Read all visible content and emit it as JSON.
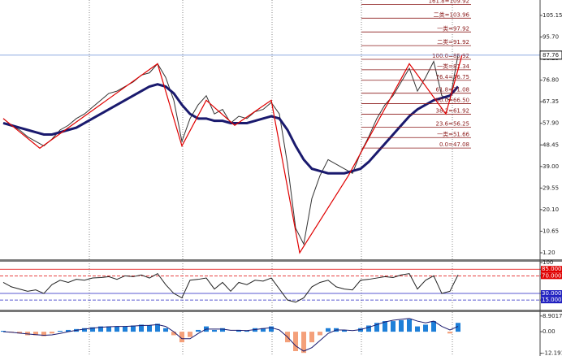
{
  "chart_data": [
    {
      "type": "line",
      "ylim": [
        -1.29,
        111.91
      ],
      "yticks": [
        {
          "value": 105.15,
          "label": "105.15"
        },
        {
          "value": 95.7,
          "label": "95.70"
        },
        86.25,
        {
          "value": 76.8,
          "label": "76.80"
        },
        67.35,
        {
          "value": 57.9,
          "label": "57.90"
        },
        48.45,
        {
          "value": 39,
          "label": "39.00"
        },
        29.55,
        {
          "value": 20.1,
          "label": "20.10"
        },
        10.65,
        {
          "value": 1.2,
          "label": "1.20"
        }
      ],
      "last_price": 87.76,
      "series": [
        {
          "color": "#333333",
          "values": [
            60,
            57,
            55,
            52,
            50,
            48,
            51,
            55,
            57,
            60,
            62,
            65,
            68,
            71,
            72,
            74,
            76,
            79,
            80,
            84,
            78,
            68,
            50,
            60,
            66,
            70,
            62,
            64,
            58,
            61,
            60,
            63,
            64,
            67,
            62,
            40,
            12,
            5,
            25,
            35,
            42,
            40,
            38,
            36,
            45,
            52,
            60,
            66,
            70,
            76,
            82,
            72,
            78,
            85,
            70,
            68,
            88
          ]
        },
        {
          "color": "#1a1a6e",
          "values": [
            58,
            57,
            56,
            55,
            54,
            53,
            53,
            54,
            55,
            56,
            58,
            60,
            62,
            64,
            66,
            68,
            70,
            72,
            74,
            75,
            74,
            71,
            66,
            62,
            60,
            60,
            59,
            59,
            58,
            58,
            58,
            59,
            60,
            61,
            60,
            55,
            48,
            42,
            38,
            37,
            36,
            36,
            36,
            37,
            38,
            41,
            45,
            49,
            53,
            57,
            61,
            64,
            66,
            68,
            69,
            70,
            74
          ]
        }
      ],
      "zigzag": {
        "color": "#e00000",
        "x": [
          0,
          4.5,
          19,
          22,
          25,
          28.5,
          33,
          36.5,
          42.5,
          50,
          54.5,
          56.5
        ],
        "values": [
          60,
          47,
          84,
          48,
          68,
          57,
          68,
          1.2,
          35,
          84,
          62,
          88
        ]
      },
      "fib_color": "#8b1a1a",
      "fib_levels": [
        {
          "value": 109.92,
          "label": "161.8=109.92"
        },
        {
          "value": 103.96,
          "label": "二类=103.96"
        },
        {
          "value": 97.92,
          "label": "一类=97.92"
        },
        {
          "value": 91.92,
          "label": "二类=91.92"
        },
        {
          "value": 85.92,
          "label": "100.0=85.92"
        },
        {
          "value": 81.34,
          "label": "一类=81.34"
        },
        {
          "value": 76.75,
          "label": "76.4=76.75"
        },
        {
          "value": 71.08,
          "label": "61.8=71.08"
        },
        {
          "value": 66.5,
          "label": "50.0=66.50"
        },
        {
          "value": 61.92,
          "label": "38.2=61.92"
        },
        {
          "value": 56.25,
          "label": "23.6=56.25"
        },
        {
          "value": 51.66,
          "label": "一类=51.66"
        },
        {
          "value": 47.08,
          "label": "0.0=47.08"
        }
      ]
    },
    {
      "type": "line",
      "ylim": [
        -5,
        102
      ],
      "yticks": [
        100,
        {
          "value": 85,
          "label": "85.0000"
        },
        {
          "value": 70,
          "label": "70.0000"
        },
        {
          "value": 30,
          "label": "30.0000"
        },
        {
          "value": 15,
          "label": "15.0000"
        }
      ],
      "ytick_colors": [
        "#ffffff",
        "#e00000",
        "#e00000",
        "#2020c0",
        "#2020c0"
      ],
      "series": [
        {
          "color": "#222222",
          "values": [
            55,
            45,
            40,
            35,
            38,
            30,
            50,
            60,
            55,
            62,
            60,
            65,
            66,
            68,
            62,
            70,
            68,
            72,
            65,
            75,
            50,
            30,
            20,
            60,
            62,
            65,
            40,
            55,
            35,
            55,
            50,
            60,
            58,
            65,
            40,
            15,
            10,
            20,
            45,
            55,
            60,
            45,
            40,
            38,
            60,
            62,
            65,
            68,
            66,
            72,
            75,
            40,
            60,
            70,
            30,
            35,
            72
          ]
        }
      ]
    },
    {
      "type": "bar",
      "ylim": [
        -13.3,
        11.1
      ],
      "yticks": [
        8.9017,
        {
          "value": 0,
          "label": "0.00"
        },
        -12.191
      ],
      "colors": [
        "#1e7fd8",
        "#f4a07a"
      ],
      "values": [
        0.5,
        -0.5,
        -1,
        -2,
        -2,
        -2.5,
        -1,
        0.5,
        1,
        1.5,
        2,
        2.5,
        3,
        3,
        3,
        3,
        3.5,
        4,
        3.5,
        4.5,
        2,
        -2,
        -6,
        -3,
        1,
        3,
        1,
        2,
        0,
        1,
        0.5,
        2,
        2,
        3,
        0,
        -6,
        -11,
        -12,
        -6,
        -2,
        2,
        2,
        1,
        0,
        2,
        3.5,
        5,
        6,
        6,
        6.5,
        7,
        3,
        4,
        6,
        0,
        -1,
        5
      ],
      "series": [
        {
          "color": "#1a1a6e",
          "values": [
            0,
            -0.3,
            -0.8,
            -1.3,
            -1.7,
            -2,
            -1.8,
            -1,
            0,
            0.8,
            1.5,
            2,
            2.5,
            2.8,
            3,
            3,
            3.2,
            3.5,
            3.6,
            4,
            3,
            0,
            -4,
            -4,
            -1,
            1.5,
            1.5,
            1.5,
            0.8,
            0.8,
            0.6,
            1.2,
            1.8,
            2.3,
            1,
            -3,
            -8,
            -11,
            -9,
            -5,
            -1,
            1,
            1,
            0.6,
            1.2,
            2.5,
            4,
            5.5,
            6.5,
            7,
            7.5,
            6,
            5,
            6,
            3,
            1,
            3
          ]
        }
      ]
    }
  ]
}
